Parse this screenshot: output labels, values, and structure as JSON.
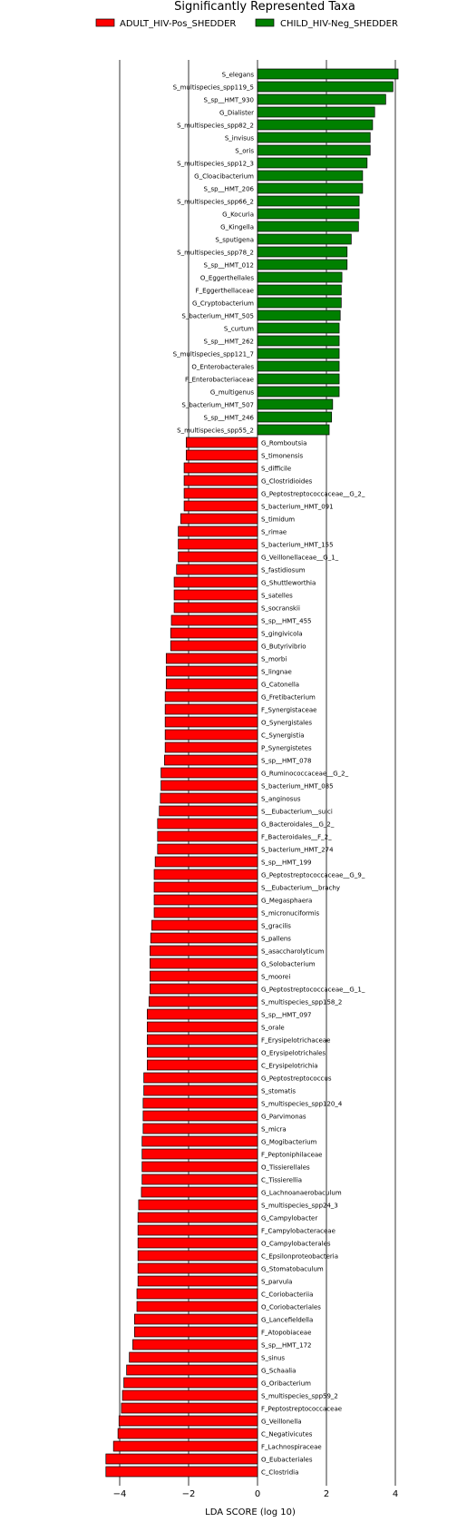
{
  "chart_data": {
    "type": "bar",
    "orientation": "horizontal",
    "title": "Significantly Represented Taxa",
    "xlabel": "LDA SCORE (log 10)",
    "xlim": [
      -4.5,
      4.5
    ],
    "xticks": [
      -4,
      -2,
      0,
      2,
      4
    ],
    "legend_position": "top",
    "series": [
      {
        "name": "ADULT_HIV-Pos_SHEDDER",
        "color": "#ff0000"
      },
      {
        "name": "CHILD_HIV-Neg_SHEDDER",
        "color": "#008000"
      }
    ],
    "bars": [
      {
        "label": "S_elegans",
        "value": 4.08,
        "group": 1
      },
      {
        "label": "S_multispecies_spp119_5",
        "value": 3.93,
        "group": 1
      },
      {
        "label": "S_sp__HMT_930",
        "value": 3.72,
        "group": 1
      },
      {
        "label": "G_Dialister",
        "value": 3.4,
        "group": 1
      },
      {
        "label": "S_multispecies_spp82_2",
        "value": 3.34,
        "group": 1
      },
      {
        "label": "S_invisus",
        "value": 3.27,
        "group": 1
      },
      {
        "label": "S_oris",
        "value": 3.27,
        "group": 1
      },
      {
        "label": "S_multispecies_spp12_3",
        "value": 3.18,
        "group": 1
      },
      {
        "label": "G_Cloacibacterium",
        "value": 3.05,
        "group": 1
      },
      {
        "label": "S_sp__HMT_206",
        "value": 3.05,
        "group": 1
      },
      {
        "label": "S_multispecies_spp66_2",
        "value": 2.95,
        "group": 1
      },
      {
        "label": "G_Kocuria",
        "value": 2.95,
        "group": 1
      },
      {
        "label": "G_Kingella",
        "value": 2.93,
        "group": 1
      },
      {
        "label": "S_sputigena",
        "value": 2.72,
        "group": 1
      },
      {
        "label": "S_multispecies_spp78_2",
        "value": 2.6,
        "group": 1
      },
      {
        "label": "S_sp__HMT_012",
        "value": 2.6,
        "group": 1
      },
      {
        "label": "O_Eggerthellales",
        "value": 2.45,
        "group": 1
      },
      {
        "label": "F_Eggerthellaceae",
        "value": 2.43,
        "group": 1
      },
      {
        "label": "G_Cryptobacterium",
        "value": 2.43,
        "group": 1
      },
      {
        "label": "S_bacterium_HMT_505",
        "value": 2.4,
        "group": 1
      },
      {
        "label": "S_curtum",
        "value": 2.37,
        "group": 1
      },
      {
        "label": "S_sp__HMT_262",
        "value": 2.37,
        "group": 1
      },
      {
        "label": "S_multispecies_spp121_7",
        "value": 2.37,
        "group": 1
      },
      {
        "label": "O_Enterobacterales",
        "value": 2.37,
        "group": 1
      },
      {
        "label": "F_Enterobacteriaceae",
        "value": 2.37,
        "group": 1
      },
      {
        "label": "G_multigenus",
        "value": 2.37,
        "group": 1
      },
      {
        "label": "S_bacterium_HMT_507",
        "value": 2.18,
        "group": 1
      },
      {
        "label": "S_sp__HMT_246",
        "value": 2.15,
        "group": 1
      },
      {
        "label": "S_multispecies_spp55_2",
        "value": 2.08,
        "group": 1
      },
      {
        "label": "G_Romboutsia",
        "value": -2.07,
        "group": 0
      },
      {
        "label": "S_timonensis",
        "value": -2.07,
        "group": 0
      },
      {
        "label": "S_difficile",
        "value": -2.13,
        "group": 0
      },
      {
        "label": "G_Clostridioides",
        "value": -2.13,
        "group": 0
      },
      {
        "label": "G_Peptostreptococcaceae__G_2_",
        "value": -2.13,
        "group": 0
      },
      {
        "label": "S_bacterium_HMT_091",
        "value": -2.13,
        "group": 0
      },
      {
        "label": "S_timidum",
        "value": -2.23,
        "group": 0
      },
      {
        "label": "S_rimae",
        "value": -2.3,
        "group": 0
      },
      {
        "label": "S_bacterium_HMT_155",
        "value": -2.3,
        "group": 0
      },
      {
        "label": "G_Veillonellaceae__G_1_",
        "value": -2.3,
        "group": 0
      },
      {
        "label": "S_fastidiosum",
        "value": -2.35,
        "group": 0
      },
      {
        "label": "G_Shuttleworthia",
        "value": -2.42,
        "group": 0
      },
      {
        "label": "S_satelles",
        "value": -2.42,
        "group": 0
      },
      {
        "label": "S_socranskii",
        "value": -2.42,
        "group": 0
      },
      {
        "label": "S_sp__HMT_455",
        "value": -2.5,
        "group": 0
      },
      {
        "label": "S_gingivicola",
        "value": -2.52,
        "group": 0
      },
      {
        "label": "G_Butyrivibrio",
        "value": -2.52,
        "group": 0
      },
      {
        "label": "S_morbi",
        "value": -2.65,
        "group": 0
      },
      {
        "label": "S_lingnae",
        "value": -2.65,
        "group": 0
      },
      {
        "label": "G_Catonella",
        "value": -2.65,
        "group": 0
      },
      {
        "label": "G_Fretibacterium",
        "value": -2.68,
        "group": 0
      },
      {
        "label": "F_Synergistaceae",
        "value": -2.68,
        "group": 0
      },
      {
        "label": "O_Synergistales",
        "value": -2.68,
        "group": 0
      },
      {
        "label": "C_Synergistia",
        "value": -2.68,
        "group": 0
      },
      {
        "label": "P_Synergistetes",
        "value": -2.68,
        "group": 0
      },
      {
        "label": "S_sp__HMT_078",
        "value": -2.7,
        "group": 0
      },
      {
        "label": "G_Ruminococcaceae__G_2_",
        "value": -2.8,
        "group": 0
      },
      {
        "label": "S_bacterium_HMT_085",
        "value": -2.8,
        "group": 0
      },
      {
        "label": "S_anginosus",
        "value": -2.82,
        "group": 0
      },
      {
        "label": "S__Eubacterium__sulci",
        "value": -2.85,
        "group": 0
      },
      {
        "label": "G_Bacteroidales__G_2_",
        "value": -2.9,
        "group": 0
      },
      {
        "label": "F_Bacteroidales__F_2_",
        "value": -2.9,
        "group": 0
      },
      {
        "label": "S_bacterium_HMT_274",
        "value": -2.9,
        "group": 0
      },
      {
        "label": "S_sp__HMT_199",
        "value": -2.97,
        "group": 0
      },
      {
        "label": "G_Peptostreptococcaceae__G_9_",
        "value": -3.0,
        "group": 0
      },
      {
        "label": "S__Eubacterium__brachy",
        "value": -3.0,
        "group": 0
      },
      {
        "label": "G_Megasphaera",
        "value": -3.0,
        "group": 0
      },
      {
        "label": "S_micronuciformis",
        "value": -3.0,
        "group": 0
      },
      {
        "label": "S_gracilis",
        "value": -3.07,
        "group": 0
      },
      {
        "label": "S_pallens",
        "value": -3.1,
        "group": 0
      },
      {
        "label": "S_asaccharolyticum",
        "value": -3.12,
        "group": 0
      },
      {
        "label": "G_Solobacterium",
        "value": -3.12,
        "group": 0
      },
      {
        "label": "S_moorei",
        "value": -3.12,
        "group": 0
      },
      {
        "label": "G_Peptostreptococcaceae__G_1_",
        "value": -3.12,
        "group": 0
      },
      {
        "label": "S_multispecies_spp158_2",
        "value": -3.15,
        "group": 0
      },
      {
        "label": "S_sp__HMT_097",
        "value": -3.2,
        "group": 0
      },
      {
        "label": "S_orale",
        "value": -3.2,
        "group": 0
      },
      {
        "label": "F_Erysipelotrichaceae",
        "value": -3.2,
        "group": 0
      },
      {
        "label": "O_Erysipelotrichales",
        "value": -3.2,
        "group": 0
      },
      {
        "label": "C_Erysipelotrichia",
        "value": -3.2,
        "group": 0
      },
      {
        "label": "G_Peptostreptococcus",
        "value": -3.3,
        "group": 0
      },
      {
        "label": "S_stomatis",
        "value": -3.3,
        "group": 0
      },
      {
        "label": "S_multispecies_spp120_4",
        "value": -3.32,
        "group": 0
      },
      {
        "label": "G_Parvimonas",
        "value": -3.32,
        "group": 0
      },
      {
        "label": "S_micra",
        "value": -3.32,
        "group": 0
      },
      {
        "label": "G_Mogibacterium",
        "value": -3.35,
        "group": 0
      },
      {
        "label": "F_Peptoniphilaceae",
        "value": -3.35,
        "group": 0
      },
      {
        "label": "O_Tissierellales",
        "value": -3.35,
        "group": 0
      },
      {
        "label": "C_Tissierellia",
        "value": -3.35,
        "group": 0
      },
      {
        "label": "G_Lachnoanaerobaculum",
        "value": -3.37,
        "group": 0
      },
      {
        "label": "S_multispecies_spp24_3",
        "value": -3.45,
        "group": 0
      },
      {
        "label": "G_Campylobacter",
        "value": -3.47,
        "group": 0
      },
      {
        "label": "F_Campylobacteraceae",
        "value": -3.47,
        "group": 0
      },
      {
        "label": "O_Campylobacterales",
        "value": -3.47,
        "group": 0
      },
      {
        "label": "C_Epsilonproteobacteria",
        "value": -3.47,
        "group": 0
      },
      {
        "label": "G_Stomatobaculum",
        "value": -3.47,
        "group": 0
      },
      {
        "label": "S_parvula",
        "value": -3.47,
        "group": 0
      },
      {
        "label": "C_Coriobacteriia",
        "value": -3.5,
        "group": 0
      },
      {
        "label": "O_Coriobacteriales",
        "value": -3.5,
        "group": 0
      },
      {
        "label": "G_Lancefieldella",
        "value": -3.57,
        "group": 0
      },
      {
        "label": "F_Atopobiaceae",
        "value": -3.57,
        "group": 0
      },
      {
        "label": "S_sp__HMT_172",
        "value": -3.62,
        "group": 0
      },
      {
        "label": "S_sinus",
        "value": -3.72,
        "group": 0
      },
      {
        "label": "G_Schaalia",
        "value": -3.8,
        "group": 0
      },
      {
        "label": "G_Oribacterium",
        "value": -3.88,
        "group": 0
      },
      {
        "label": "S_multispecies_spp59_2",
        "value": -3.92,
        "group": 0
      },
      {
        "label": "F_Peptostreptococcaceae",
        "value": -3.95,
        "group": 0
      },
      {
        "label": "G_Veillonella",
        "value": -4.02,
        "group": 0
      },
      {
        "label": "C_Negativicutes",
        "value": -4.05,
        "group": 0
      },
      {
        "label": "F_Lachnospiraceae",
        "value": -4.18,
        "group": 0
      },
      {
        "label": "O_Eubacteriales",
        "value": -4.4,
        "group": 0
      },
      {
        "label": "C_Clostridia",
        "value": -4.4,
        "group": 0
      }
    ]
  }
}
